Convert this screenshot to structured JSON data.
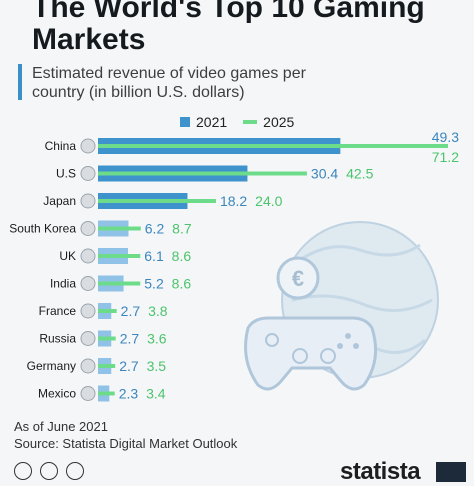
{
  "header": {
    "title": "The World's Top 10 Gaming Markets",
    "subtitle": "Estimated revenue of video games per country (in billion U.S. dollars)"
  },
  "legend": {
    "label_2021": "2021",
    "label_2025": "2025"
  },
  "colors": {
    "bar_2021": "#3f93cd",
    "bar_2021_light": "#8fc2e6",
    "line_2025": "#6ddc8a"
  },
  "chart_data": {
    "type": "bar",
    "orientation": "horizontal",
    "categories": [
      "China",
      "U.S",
      "Japan",
      "South Korea",
      "UK",
      "India",
      "France",
      "Russia",
      "Germany",
      "Mexico"
    ],
    "series": [
      {
        "name": "2021",
        "values": [
          49.3,
          30.4,
          18.2,
          6.2,
          6.1,
          5.2,
          2.7,
          2.7,
          2.7,
          2.3
        ]
      },
      {
        "name": "2025",
        "values": [
          71.2,
          42.5,
          24.0,
          8.7,
          8.6,
          8.6,
          3.8,
          3.6,
          3.5,
          3.4
        ]
      }
    ],
    "value_labels": {
      "2021": [
        "49.3",
        "30.4",
        "18.2",
        "6.2",
        "6.1",
        "5.2",
        "2.7",
        "2.7",
        "2.7",
        "2.3"
      ],
      "2025": [
        "71.2",
        "42.5",
        "24.0",
        "8.7",
        "8.6",
        "8.6",
        "3.8",
        "3.6",
        "3.5",
        "3.4"
      ]
    },
    "title": "The World's Top 10 Gaming Markets",
    "xlabel": "",
    "ylabel": "",
    "legend": "top"
  },
  "footer": {
    "note": "As of June 2021",
    "source": "Source: Statista Digital Market Outlook",
    "brand": "statista"
  }
}
